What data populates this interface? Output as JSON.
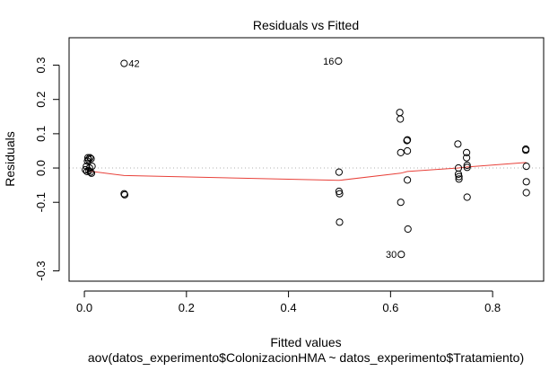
{
  "chart_data": {
    "type": "scatter",
    "title": "Residuals vs Fitted",
    "xlabel": "Fitted values",
    "xlabel_sub": "aov(datos_experimento$ColonizacionHMA ~ datos_experimento$Tratamiento)",
    "ylabel": "Residuals",
    "xlim": [
      -0.03,
      0.9
    ],
    "ylim": [
      -0.33,
      0.38
    ],
    "xticks": [
      {
        "value": 0.0,
        "label": "0.0"
      },
      {
        "value": 0.2,
        "label": "0.2"
      },
      {
        "value": 0.4,
        "label": "0.4"
      },
      {
        "value": 0.6,
        "label": "0.6"
      },
      {
        "value": 0.8,
        "label": "0.8"
      }
    ],
    "yticks": [
      {
        "value": 0.3,
        "label": "0.3"
      },
      {
        "value": 0.2,
        "label": "0.2"
      },
      {
        "value": 0.1,
        "label": "0.1"
      },
      {
        "value": 0.0,
        "label": "0.0"
      },
      {
        "value": -0.1,
        "label": "-0.1"
      },
      {
        "value": -0.3,
        "label": "-0.3"
      }
    ],
    "points": [
      {
        "x": 0.002,
        "y": -0.005
      },
      {
        "x": 0.004,
        "y": 0.005
      },
      {
        "x": 0.005,
        "y": -0.01
      },
      {
        "x": 0.006,
        "y": 0.02
      },
      {
        "x": 0.007,
        "y": 0.03
      },
      {
        "x": 0.008,
        "y": 0.025
      },
      {
        "x": 0.009,
        "y": -0.008
      },
      {
        "x": 0.01,
        "y": 0.0
      },
      {
        "x": 0.011,
        "y": 0.03
      },
      {
        "x": 0.012,
        "y": -0.012
      },
      {
        "x": 0.013,
        "y": 0.027
      },
      {
        "x": 0.014,
        "y": -0.015
      },
      {
        "x": 0.015,
        "y": 0.005
      },
      {
        "x": 0.078,
        "y": 0.305
      },
      {
        "x": 0.078,
        "y": -0.075
      },
      {
        "x": 0.079,
        "y": -0.078
      },
      {
        "x": 0.498,
        "y": 0.312
      },
      {
        "x": 0.499,
        "y": -0.012
      },
      {
        "x": 0.499,
        "y": -0.068
      },
      {
        "x": 0.5,
        "y": -0.075
      },
      {
        "x": 0.5,
        "y": -0.158
      },
      {
        "x": 0.618,
        "y": 0.162
      },
      {
        "x": 0.619,
        "y": 0.143
      },
      {
        "x": 0.62,
        "y": 0.045
      },
      {
        "x": 0.62,
        "y": -0.1
      },
      {
        "x": 0.621,
        "y": -0.252
      },
      {
        "x": 0.632,
        "y": 0.08
      },
      {
        "x": 0.633,
        "y": 0.082
      },
      {
        "x": 0.633,
        "y": 0.05
      },
      {
        "x": 0.633,
        "y": -0.035
      },
      {
        "x": 0.634,
        "y": -0.178
      },
      {
        "x": 0.732,
        "y": 0.07
      },
      {
        "x": 0.733,
        "y": 0.0
      },
      {
        "x": 0.733,
        "y": -0.018
      },
      {
        "x": 0.734,
        "y": -0.025
      },
      {
        "x": 0.734,
        "y": -0.032
      },
      {
        "x": 0.749,
        "y": 0.045
      },
      {
        "x": 0.749,
        "y": 0.03
      },
      {
        "x": 0.75,
        "y": 0.008
      },
      {
        "x": 0.75,
        "y": 0.002
      },
      {
        "x": 0.75,
        "y": -0.085
      },
      {
        "x": 0.865,
        "y": 0.055
      },
      {
        "x": 0.865,
        "y": 0.052
      },
      {
        "x": 0.866,
        "y": 0.005
      },
      {
        "x": 0.866,
        "y": -0.04
      },
      {
        "x": 0.866,
        "y": -0.072
      }
    ],
    "annotations": [
      {
        "label": "42",
        "x": 0.078,
        "y": 0.305,
        "side": "right"
      },
      {
        "label": "16",
        "x": 0.498,
        "y": 0.312,
        "side": "left"
      },
      {
        "label": "30",
        "x": 0.621,
        "y": -0.252,
        "side": "left"
      }
    ],
    "smooth_line": {
      "x": [
        0.005,
        0.078,
        0.499,
        0.62,
        0.633,
        0.733,
        0.75,
        0.866
      ],
      "y": [
        -0.008,
        -0.022,
        -0.036,
        -0.015,
        -0.01,
        0.0,
        0.003,
        0.016
      ]
    },
    "reference_line": {
      "y": 0.0,
      "style": "dotted"
    },
    "colors": {
      "points": "#000000",
      "smooth_line": "#e8413a",
      "reference_line": "#b0b0b0",
      "frame": "#000000"
    },
    "grid": false
  }
}
